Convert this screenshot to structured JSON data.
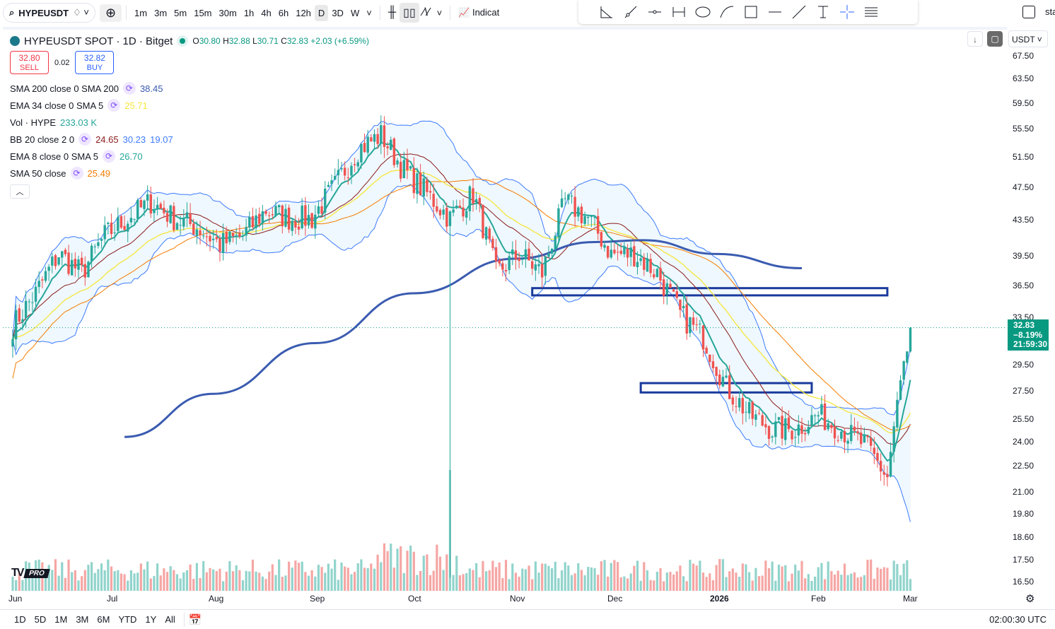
{
  "toolbar": {
    "symbol": "HYPEUSDT",
    "intervals": [
      "1m",
      "3m",
      "5m",
      "15m",
      "30m",
      "1h",
      "4h",
      "6h",
      "12h",
      "D",
      "3D",
      "W"
    ],
    "active_interval": "D",
    "indicators_label": "Indicat",
    "right_label": "sta"
  },
  "header": {
    "title": "HYPEUSDT SPOT · 1D · Bitget",
    "o_label": "O",
    "o": "30.80",
    "h_label": "H",
    "h": "32.88",
    "l_label": "L",
    "l": "30.71",
    "c_label": "C",
    "c": "32.83",
    "change": "+2.03 (+6.59%)",
    "sell_price": "32.80",
    "sell_label": "SELL",
    "spread": "0.02",
    "buy_price": "32.82",
    "buy_label": "BUY"
  },
  "indicators": [
    {
      "name": "SMA 200 close 0 SMA 200",
      "values": [
        "38.45"
      ],
      "colors": [
        "#3a5bb0"
      ]
    },
    {
      "name": "EMA 34 close 0 SMA 5",
      "values": [
        "25.71"
      ],
      "colors": [
        "#f5e63a"
      ]
    },
    {
      "name": "Vol · HYPE",
      "values": [
        "233.03 K"
      ],
      "colors": [
        "#26a69a"
      ]
    },
    {
      "name": "BB 20 close 2 0",
      "values": [
        "24.65",
        "30.23",
        "19.07"
      ],
      "colors": [
        "#8b1a1a",
        "#3d7bff",
        "#3d7bff"
      ]
    },
    {
      "name": "EMA 8 close 0 SMA 5",
      "values": [
        "26.70"
      ],
      "colors": [
        "#26a69a"
      ]
    },
    {
      "name": "SMA 50 close",
      "values": [
        "25.49"
      ],
      "colors": [
        "#f57c00"
      ]
    }
  ],
  "price_axis": {
    "currency": "USDT",
    "labels": [
      "67.50",
      "63.50",
      "59.50",
      "55.50",
      "51.50",
      "47.50",
      "43.50",
      "39.50",
      "36.50",
      "33.50",
      "29.50",
      "27.50",
      "25.50",
      "24.00",
      "22.50",
      "21.00",
      "19.80",
      "18.60",
      "17.50",
      "16.50"
    ],
    "scale": "log",
    "last_price": "32.83",
    "last_change": "−8.19%",
    "countdown": "21:59:30"
  },
  "time_axis": {
    "labels": [
      "Jun",
      "Jul",
      "Aug",
      "Sep",
      "Oct",
      "Nov",
      "Dec",
      "2026",
      "Feb",
      "Mar"
    ]
  },
  "bottom": {
    "ranges": [
      "1D",
      "5D",
      "1M",
      "3M",
      "6M",
      "YTD",
      "1Y",
      "All"
    ],
    "clock": "02:00:30 UTC"
  },
  "colors": {
    "up": "#26a69a",
    "down": "#ef5350",
    "bb": "#3d7bff",
    "ema8": "#26a69a",
    "ema34": "#f5e63a",
    "sma50": "#f57c00",
    "bb_basis": "#8b1a1a",
    "sma200": "#3a5bb0",
    "zone": "#1a3a9c"
  },
  "chart_data": {
    "type": "candlestick",
    "start": "Jun 1",
    "end": "Jan 27",
    "weekly_closes": [
      33,
      36,
      40,
      38,
      42,
      44,
      46,
      44,
      43,
      41,
      42,
      45,
      44,
      44,
      48,
      53,
      55,
      50,
      47,
      44,
      47,
      38,
      40,
      38,
      46,
      44,
      40,
      40,
      38,
      34,
      32,
      28,
      26,
      25,
      25,
      26,
      25,
      24,
      22,
      32.83
    ],
    "sma200_anchors": [
      {
        "date": "Jul 5",
        "value": 24.5
      },
      {
        "date": "Aug 1",
        "value": 27.5
      },
      {
        "date": "Sep 1",
        "value": 31.5
      },
      {
        "date": "Oct 1",
        "value": 36
      },
      {
        "date": "Nov 1",
        "value": 39.5
      },
      {
        "date": "Nov 25",
        "value": 41.3
      },
      {
        "date": "Dec 10",
        "value": 41.5
      },
      {
        "date": "Jan 1",
        "value": 40
      },
      {
        "date": "Jan 27",
        "value": 38.5
      }
    ],
    "zones": [
      {
        "top": 36.5,
        "bottom": 35.8,
        "from": "Nov 6",
        "to": "Feb 22"
      },
      {
        "top": 28.3,
        "bottom": 27.6,
        "from": "Dec 9",
        "to": "Jan 30"
      }
    ]
  }
}
